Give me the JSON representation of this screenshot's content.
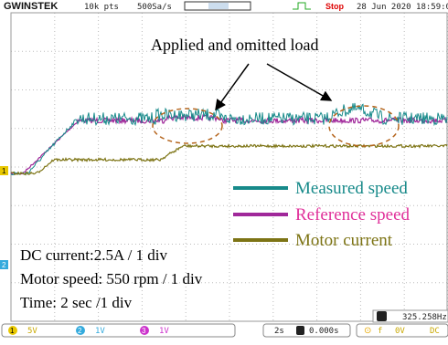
{
  "header": {
    "brand": "GWINSTEK",
    "points": "10k pts",
    "rate": "500Sa/s",
    "state": "Stop",
    "datetime": "28 Jun 2020 18:59:0"
  },
  "annotation": "Applied and omitted load",
  "legend": [
    "Measured speed",
    "Reference speed",
    "Motor current"
  ],
  "notes": [
    "DC current:2.5A / 1 div",
    "Motor speed: 550 rpm / 1 div",
    "Time: 2 sec /1 div"
  ],
  "markers": [
    "1",
    "2"
  ],
  "frequency": "325.258Hz",
  "footer": {
    "ch1": "1",
    "ch1_scale": "5V",
    "ch2": "2",
    "ch2_scale": "1V",
    "ch3": "3",
    "ch3_scale": "1V",
    "timebase": "2s",
    "position": "0.000s",
    "trigger_source": "f",
    "trigger_level": "0V",
    "coupling": "DC"
  }
}
